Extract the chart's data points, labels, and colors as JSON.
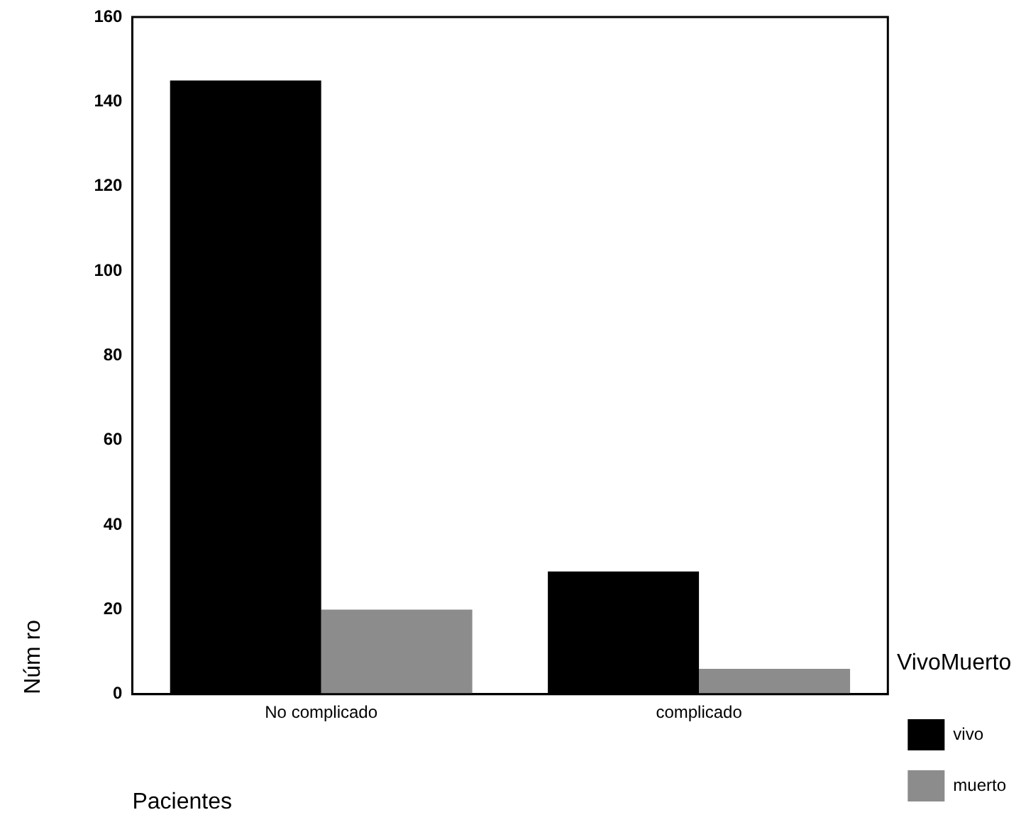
{
  "chart_data": {
    "type": "bar",
    "xlabel": "Pacientes",
    "ylabel": "Núm ro",
    "legend_title": "VivoMuerto",
    "categories": [
      "No complicado",
      "complicado"
    ],
    "series": [
      {
        "name": "vivo",
        "color": "#000000",
        "values": [
          145,
          29
        ]
      },
      {
        "name": "muerto",
        "color": "#8c8c8c",
        "values": [
          20,
          6
        ]
      }
    ],
    "ylim": [
      0,
      160
    ],
    "yticks": [
      0,
      20,
      40,
      60,
      80,
      100,
      120,
      140,
      160
    ],
    "grid": false,
    "legend": "right"
  }
}
